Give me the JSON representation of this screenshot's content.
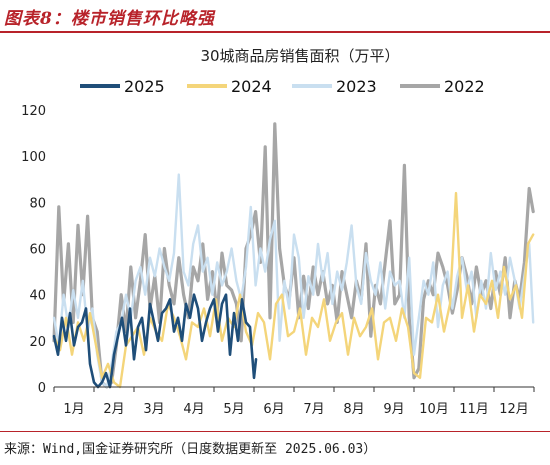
{
  "header": {
    "figure_title": "图表8：楼市销售环比略强"
  },
  "footer": {
    "source": "来源：Wind,国金证券研究所（日度数据更新至 2025.06.03）"
  },
  "colors": {
    "2025": "#1f4e79",
    "2024": "#f4d57a",
    "2023": "#c9dff0",
    "2022": "#a6a6a6",
    "accent": "#b8232a"
  },
  "chart_data": {
    "type": "line",
    "title": "30城商品房销售面积（万平）",
    "xlabel": "",
    "ylabel": "",
    "ylim": [
      0,
      120
    ],
    "yticks": [
      0,
      20,
      40,
      60,
      80,
      100,
      120
    ],
    "xlim": [
      1,
      13
    ],
    "x_tick_labels": [
      "1月",
      "2月",
      "3月",
      "4月",
      "5月",
      "6月",
      "7月",
      "8月",
      "9月",
      "10月",
      "11月",
      "12月"
    ],
    "legend_position": "top",
    "series": [
      {
        "name": "2025",
        "color": "#1f4e79",
        "stroke": 2.6,
        "x": [
          1.0,
          1.1,
          1.2,
          1.3,
          1.4,
          1.5,
          1.6,
          1.7,
          1.8,
          1.9,
          2.0,
          2.1,
          2.2,
          2.3,
          2.4,
          2.5,
          2.6,
          2.7,
          2.8,
          2.9,
          3.0,
          3.1,
          3.2,
          3.3,
          3.4,
          3.5,
          3.6,
          3.7,
          3.8,
          3.9,
          4.0,
          4.1,
          4.2,
          4.3,
          4.4,
          4.5,
          4.6,
          4.7,
          4.8,
          4.9,
          5.0,
          5.1,
          5.2,
          5.3,
          5.4,
          5.5,
          5.6,
          5.7,
          5.8,
          5.9,
          6.0,
          6.05
        ],
        "values": [
          22,
          14,
          30,
          20,
          32,
          18,
          26,
          28,
          34,
          10,
          2,
          0,
          2,
          6,
          0,
          14,
          22,
          30,
          18,
          34,
          12,
          26,
          30,
          16,
          36,
          28,
          20,
          32,
          34,
          38,
          24,
          30,
          20,
          36,
          30,
          40,
          34,
          20,
          28,
          34,
          38,
          24,
          36,
          40,
          14,
          32,
          20,
          38,
          28,
          26,
          4,
          12
        ]
      },
      {
        "name": "2024",
        "color": "#f4d57a",
        "stroke": 2.4,
        "x": [
          1.0,
          1.15,
          1.3,
          1.45,
          1.6,
          1.75,
          1.9,
          2.05,
          2.2,
          2.35,
          2.5,
          2.65,
          2.8,
          2.95,
          3.1,
          3.25,
          3.4,
          3.55,
          3.7,
          3.85,
          4.0,
          4.15,
          4.3,
          4.45,
          4.6,
          4.75,
          4.9,
          5.05,
          5.2,
          5.35,
          5.5,
          5.65,
          5.8,
          5.95,
          6.1,
          6.25,
          6.4,
          6.55,
          6.7,
          6.85,
          7.0,
          7.15,
          7.3,
          7.45,
          7.6,
          7.75,
          7.9,
          8.05,
          8.2,
          8.35,
          8.5,
          8.65,
          8.8,
          8.95,
          9.1,
          9.25,
          9.4,
          9.55,
          9.7,
          9.85,
          10.0,
          10.15,
          10.3,
          10.45,
          10.6,
          10.75,
          10.9,
          11.05,
          11.2,
          11.35,
          11.5,
          11.65,
          11.8,
          11.95,
          12.1,
          12.25,
          12.4,
          12.55,
          12.7,
          12.85,
          12.98
        ],
        "values": [
          22,
          16,
          30,
          14,
          28,
          20,
          32,
          18,
          4,
          10,
          2,
          0,
          18,
          22,
          26,
          14,
          30,
          24,
          20,
          36,
          30,
          22,
          12,
          28,
          26,
          34,
          22,
          38,
          20,
          30,
          26,
          40,
          24,
          18,
          32,
          28,
          12,
          36,
          40,
          22,
          24,
          34,
          14,
          30,
          26,
          38,
          20,
          28,
          32,
          14,
          30,
          22,
          26,
          34,
          12,
          28,
          30,
          20,
          34,
          26,
          6,
          4,
          30,
          28,
          40,
          24,
          36,
          84,
          30,
          44,
          24,
          40,
          36,
          46,
          30,
          52,
          38,
          44,
          30,
          62,
          66
        ]
      },
      {
        "name": "2023",
        "color": "#c9dff0",
        "stroke": 2.4,
        "x": [
          1.0,
          1.12,
          1.24,
          1.36,
          1.48,
          1.6,
          1.72,
          1.84,
          1.96,
          2.08,
          2.2,
          2.32,
          2.44,
          2.56,
          2.68,
          2.8,
          2.92,
          3.04,
          3.16,
          3.28,
          3.4,
          3.52,
          3.64,
          3.76,
          3.88,
          4.0,
          4.12,
          4.24,
          4.36,
          4.48,
          4.6,
          4.72,
          4.84,
          4.96,
          5.08,
          5.2,
          5.32,
          5.44,
          5.56,
          5.68,
          5.8,
          5.92,
          6.04,
          6.16,
          6.28,
          6.4,
          6.52,
          6.64,
          6.76,
          6.88,
          7.0,
          7.12,
          7.24,
          7.36,
          7.48,
          7.6,
          7.72,
          7.84,
          7.96,
          8.08,
          8.2,
          8.32,
          8.44,
          8.56,
          8.68,
          8.8,
          8.92,
          9.04,
          9.16,
          9.28,
          9.4,
          9.52,
          9.64,
          9.76,
          9.88,
          10.0,
          10.12,
          10.24,
          10.36,
          10.48,
          10.6,
          10.72,
          10.84,
          10.96,
          11.08,
          11.2,
          11.32,
          11.44,
          11.56,
          11.68,
          11.8,
          11.92,
          12.04,
          12.16,
          12.28,
          12.4,
          12.52,
          12.64,
          12.76,
          12.88,
          12.98
        ],
        "values": [
          30,
          18,
          40,
          26,
          42,
          30,
          46,
          24,
          34,
          14,
          2,
          0,
          10,
          24,
          28,
          40,
          30,
          46,
          52,
          40,
          56,
          48,
          60,
          52,
          46,
          58,
          92,
          50,
          44,
          62,
          70,
          50,
          56,
          40,
          54,
          44,
          50,
          60,
          46,
          38,
          52,
          78,
          44,
          60,
          50,
          64,
          72,
          20,
          46,
          34,
          66,
          56,
          30,
          48,
          40,
          62,
          46,
          58,
          36,
          50,
          42,
          54,
          70,
          44,
          36,
          58,
          46,
          40,
          54,
          34,
          50,
          44,
          46,
          30,
          56,
          14,
          30,
          46,
          40,
          54,
          26,
          44,
          50,
          34,
          48,
          56,
          42,
          50,
          30,
          46,
          34,
          58,
          42,
          50,
          40,
          56,
          46,
          34,
          48,
          62,
          28
        ]
      },
      {
        "name": "2022",
        "color": "#a6a6a6",
        "stroke": 3.2,
        "x": [
          1.0,
          1.12,
          1.24,
          1.36,
          1.48,
          1.6,
          1.72,
          1.84,
          1.96,
          2.08,
          2.2,
          2.32,
          2.44,
          2.56,
          2.68,
          2.8,
          2.92,
          3.04,
          3.16,
          3.28,
          3.4,
          3.52,
          3.64,
          3.76,
          3.88,
          4.0,
          4.12,
          4.24,
          4.36,
          4.48,
          4.6,
          4.72,
          4.84,
          4.96,
          5.08,
          5.2,
          5.32,
          5.44,
          5.56,
          5.68,
          5.8,
          5.92,
          6.04,
          6.16,
          6.28,
          6.4,
          6.52,
          6.64,
          6.76,
          6.88,
          7.0,
          7.12,
          7.24,
          7.36,
          7.48,
          7.6,
          7.72,
          7.84,
          7.96,
          8.08,
          8.2,
          8.32,
          8.44,
          8.56,
          8.68,
          8.8,
          8.92,
          9.04,
          9.16,
          9.28,
          9.4,
          9.52,
          9.64,
          9.76,
          9.88,
          10.0,
          10.12,
          10.24,
          10.36,
          10.48,
          10.6,
          10.72,
          10.84,
          10.96,
          11.08,
          11.2,
          11.32,
          11.44,
          11.56,
          11.68,
          11.8,
          11.92,
          12.04,
          12.16,
          12.28,
          12.4,
          12.52,
          12.64,
          12.76,
          12.88,
          12.98
        ],
        "values": [
          20,
          78,
          36,
          62,
          28,
          70,
          40,
          74,
          30,
          24,
          2,
          0,
          2,
          18,
          40,
          24,
          52,
          30,
          46,
          66,
          34,
          48,
          28,
          60,
          44,
          36,
          56,
          40,
          30,
          52,
          46,
          62,
          38,
          50,
          32,
          58,
          44,
          42,
          36,
          20,
          60,
          66,
          76,
          54,
          104,
          30,
          114,
          60,
          44,
          38,
          56,
          30,
          48,
          34,
          52,
          40,
          50,
          36,
          44,
          28,
          50,
          40,
          30,
          46,
          38,
          62,
          22,
          44,
          36,
          54,
          72,
          36,
          40,
          96,
          30,
          4,
          8,
          38,
          46,
          40,
          58,
          52,
          44,
          32,
          42,
          56,
          48,
          36,
          52,
          40,
          46,
          34,
          50,
          40,
          56,
          30,
          46,
          38,
          54,
          86,
          76
        ]
      }
    ]
  }
}
